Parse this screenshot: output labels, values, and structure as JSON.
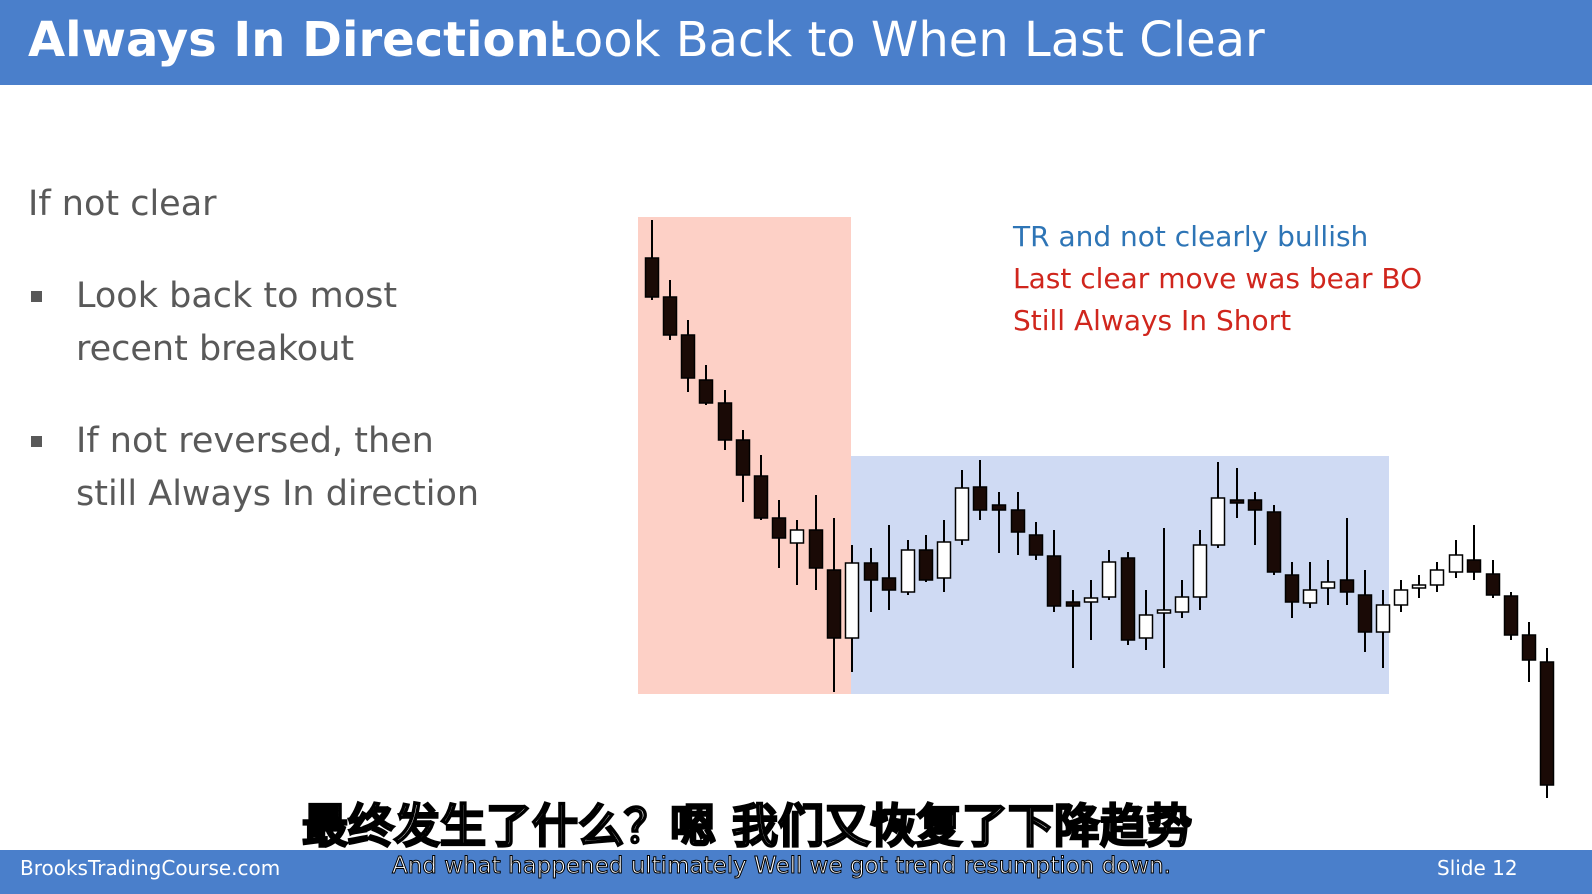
{
  "header": {
    "title_bold": "Always In Direction:",
    "title_rest": "Look Back to When Last Clear"
  },
  "body": {
    "heading": "If not clear",
    "bullets": [
      [
        "Look back to most",
        "recent breakout"
      ],
      [
        "If not reversed, then",
        "still Always In direction"
      ]
    ]
  },
  "annotations": [
    "TR and not clearly bullish",
    "Last clear move was bear BO",
    "Still Always In Short"
  ],
  "footer": {
    "site": "BrooksTradingCourse.com",
    "slide": "Slide  12"
  },
  "subtitles": {
    "zh": "最终发生了什么？嗯 我们又恢复了下降趋势",
    "en": "And what happened ultimately  Well  we got trend resumption down."
  }
}
